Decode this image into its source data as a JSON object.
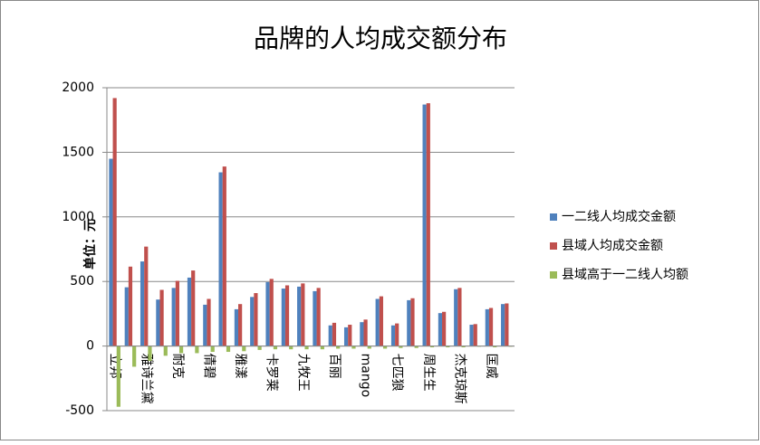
{
  "chart_data": {
    "type": "bar",
    "title": "品牌的人均成交额分布",
    "y_label": "单位：元",
    "categories": [
      "立邦",
      null,
      "雅诗兰黛",
      null,
      "耐克",
      null,
      "倩碧",
      null,
      "雅漾",
      null,
      "卡罗莱",
      null,
      "九牧王",
      null,
      "百丽",
      null,
      "mango",
      null,
      "七匹狼",
      null,
      "周生生",
      null,
      "杰克琼斯",
      null,
      "匡威",
      null
    ],
    "series": [
      {
        "name": "一二线人均成交金额",
        "color": "#4f81bd",
        "values": [
          1450,
          455,
          655,
          360,
          450,
          530,
          320,
          1345,
          285,
          380,
          495,
          445,
          460,
          425,
          160,
          145,
          185,
          365,
          160,
          355,
          1870,
          255,
          440,
          165,
          285,
          325
        ]
      },
      {
        "name": "县域人均成交金额",
        "color": "#c0504d",
        "values": [
          1920,
          615,
          770,
          435,
          505,
          585,
          365,
          1390,
          325,
          410,
          520,
          470,
          485,
          450,
          180,
          165,
          205,
          385,
          175,
          370,
          1880,
          265,
          450,
          170,
          295,
          330
        ]
      },
      {
        "name": "县域高于一二线人均额",
        "color": "#9bbb59",
        "values": [
          -470,
          -160,
          -115,
          -75,
          -55,
          -55,
          -45,
          -45,
          -40,
          -30,
          -25,
          -25,
          -25,
          -25,
          -20,
          -20,
          -20,
          -20,
          -15,
          -15,
          -10,
          -10,
          -10,
          -5,
          -10,
          -5
        ]
      }
    ],
    "ylim": [
      -500,
      2000
    ],
    "yticks": [
      -500,
      0,
      500,
      1000,
      1500,
      2000
    ],
    "grid": true,
    "legend": "right"
  }
}
